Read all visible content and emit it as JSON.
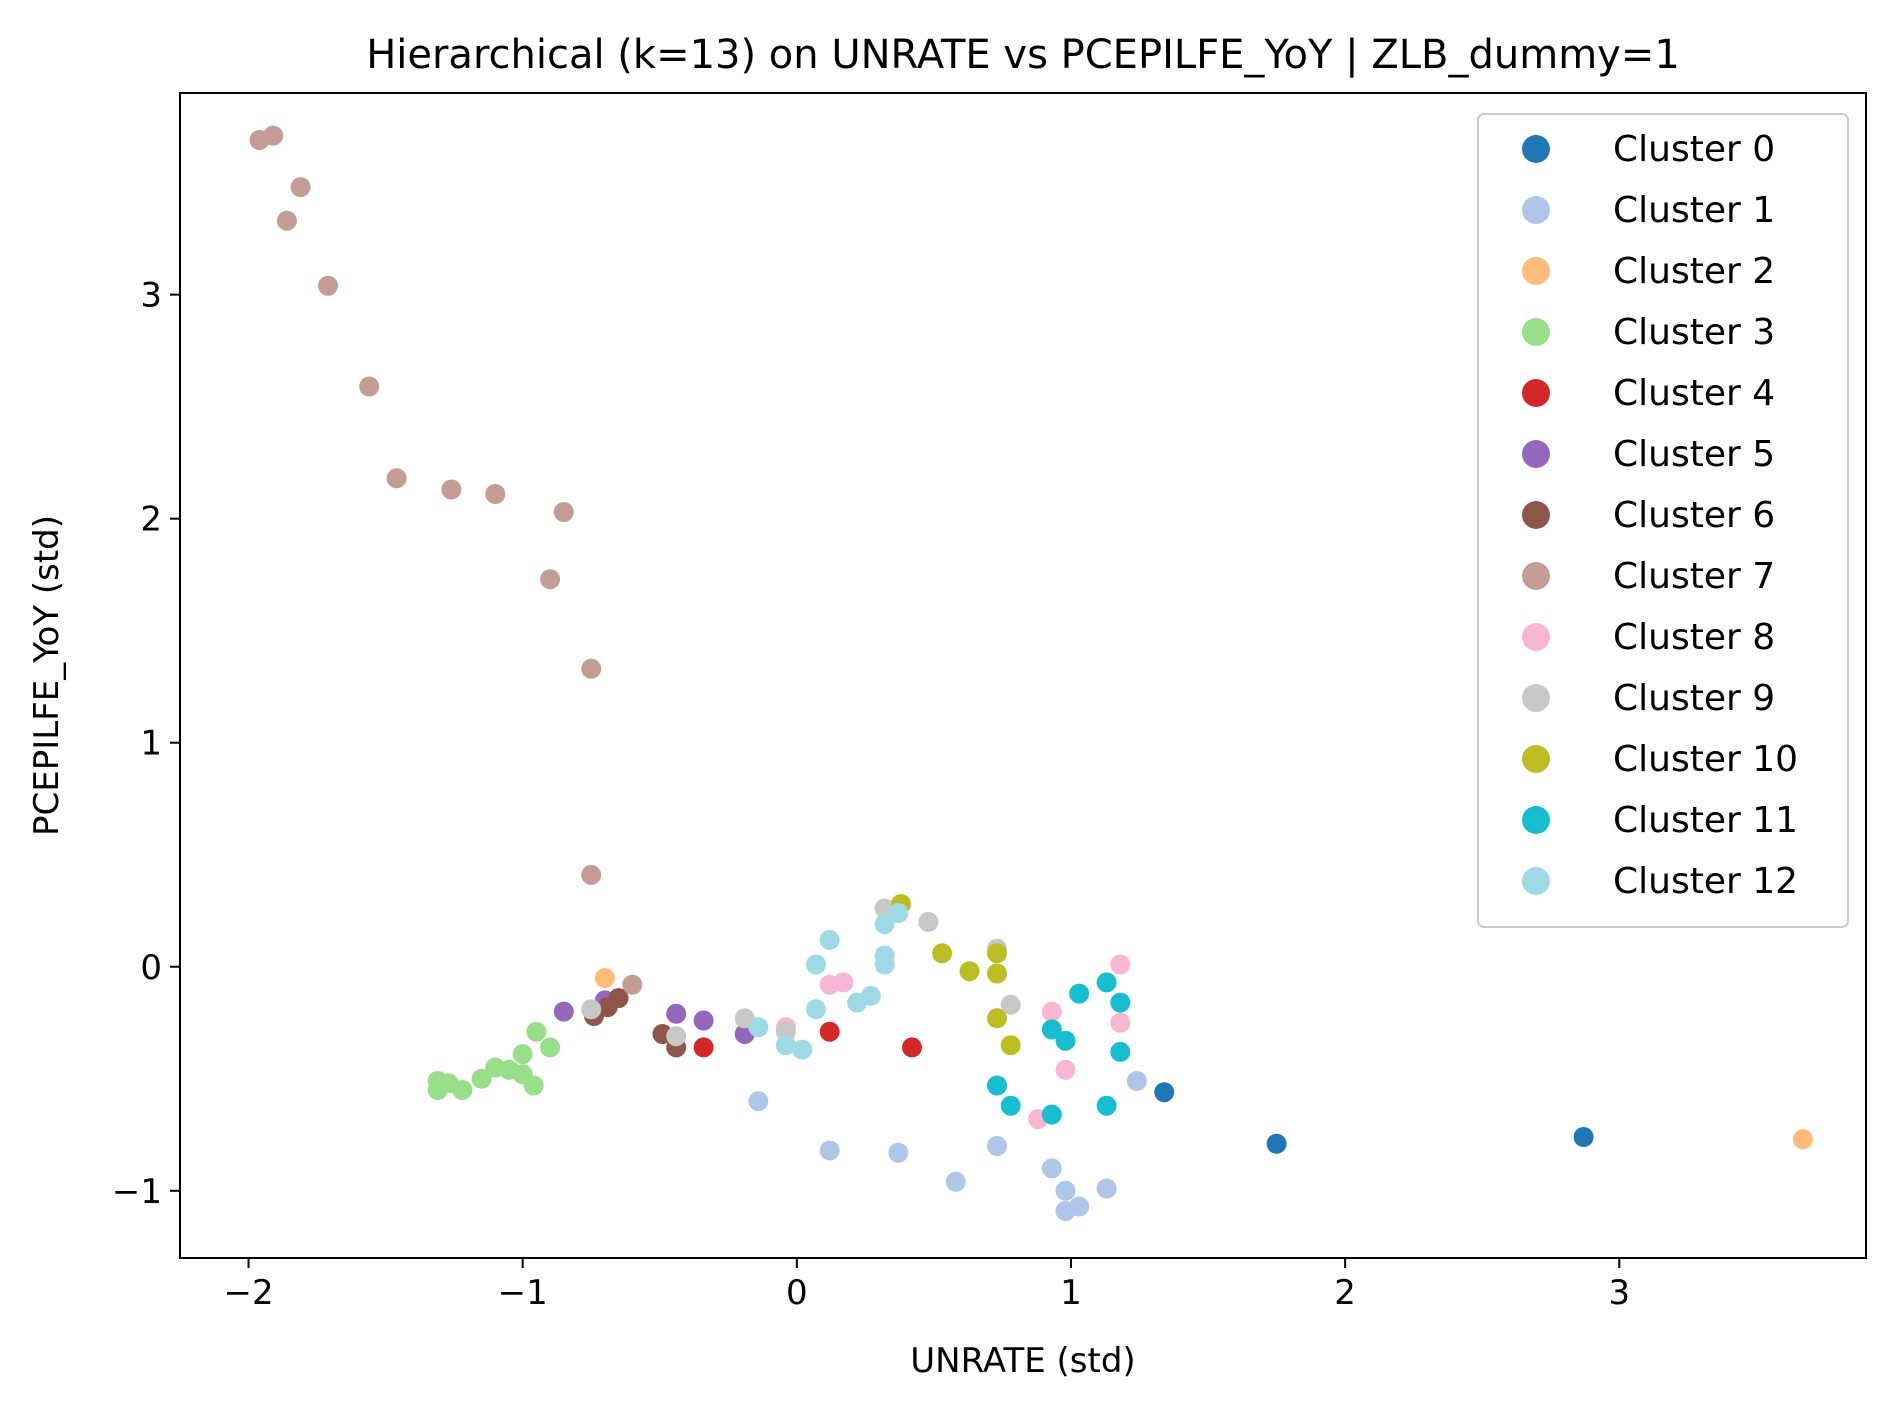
{
  "chart_data": {
    "type": "scatter",
    "title": "Hierarchical (k=13) on UNRATE vs PCEPILFE_YoY | ZLB_dummy=1",
    "xlabel": "UNRATE (std)",
    "ylabel": "PCEPILFE_YoY (std)",
    "xlim": [
      -2.25,
      3.9
    ],
    "ylim": [
      -1.3,
      3.9
    ],
    "xticks": [
      -2,
      -1,
      0,
      1,
      2,
      3
    ],
    "yticks": [
      -1,
      0,
      1,
      2,
      3
    ],
    "xtick_labels": [
      "−2",
      "−1",
      "0",
      "1",
      "2",
      "3"
    ],
    "ytick_labels": [
      "−1",
      "0",
      "1",
      "2",
      "3"
    ],
    "legend_position": "top-right",
    "series": [
      {
        "name": "Cluster 0",
        "color": "#1f77b4",
        "points": [
          [
            1.34,
            -0.56
          ],
          [
            1.75,
            -0.79
          ],
          [
            2.87,
            -0.76
          ]
        ]
      },
      {
        "name": "Cluster 1",
        "color": "#aec7e8",
        "points": [
          [
            -0.14,
            -0.6
          ],
          [
            0.12,
            -0.82
          ],
          [
            0.37,
            -0.83
          ],
          [
            0.58,
            -0.96
          ],
          [
            0.73,
            -0.8
          ],
          [
            0.93,
            -0.9
          ],
          [
            0.98,
            -1.0
          ],
          [
            0.98,
            -1.09
          ],
          [
            1.03,
            -1.07
          ],
          [
            1.13,
            -0.99
          ],
          [
            1.24,
            -0.51
          ]
        ]
      },
      {
        "name": "Cluster 2",
        "color": "#ffbb78",
        "points": [
          [
            -0.7,
            -0.05
          ],
          [
            3.67,
            -0.77
          ]
        ]
      },
      {
        "name": "Cluster 3",
        "color": "#98df8a",
        "points": [
          [
            -1.31,
            -0.51
          ],
          [
            -1.31,
            -0.55
          ],
          [
            -1.27,
            -0.52
          ],
          [
            -1.22,
            -0.55
          ],
          [
            -1.15,
            -0.5
          ],
          [
            -1.1,
            -0.45
          ],
          [
            -1.05,
            -0.46
          ],
          [
            -1.0,
            -0.48
          ],
          [
            -0.96,
            -0.53
          ],
          [
            -1.0,
            -0.39
          ],
          [
            -0.95,
            -0.29
          ],
          [
            -0.9,
            -0.36
          ]
        ]
      },
      {
        "name": "Cluster 4",
        "color": "#d62728",
        "points": [
          [
            -0.34,
            -0.36
          ],
          [
            0.12,
            -0.29
          ],
          [
            0.42,
            -0.36
          ]
        ]
      },
      {
        "name": "Cluster 5",
        "color": "#9467bd",
        "points": [
          [
            -0.85,
            -0.2
          ],
          [
            -0.7,
            -0.15
          ],
          [
            -0.44,
            -0.21
          ],
          [
            -0.34,
            -0.24
          ],
          [
            -0.19,
            -0.3
          ]
        ]
      },
      {
        "name": "Cluster 6",
        "color": "#8c564b",
        "points": [
          [
            -0.74,
            -0.22
          ],
          [
            -0.69,
            -0.18
          ],
          [
            -0.65,
            -0.14
          ],
          [
            -0.49,
            -0.3
          ],
          [
            -0.44,
            -0.36
          ]
        ]
      },
      {
        "name": "Cluster 7",
        "color": "#c49c94",
        "points": [
          [
            -1.96,
            3.69
          ],
          [
            -1.91,
            3.71
          ],
          [
            -1.81,
            3.48
          ],
          [
            -1.86,
            3.33
          ],
          [
            -1.71,
            3.04
          ],
          [
            -1.56,
            2.59
          ],
          [
            -1.46,
            2.18
          ],
          [
            -1.26,
            2.13
          ],
          [
            -1.1,
            2.11
          ],
          [
            -0.85,
            2.03
          ],
          [
            -0.9,
            1.73
          ],
          [
            -0.75,
            1.33
          ],
          [
            -0.75,
            0.41
          ],
          [
            -0.6,
            -0.08
          ]
        ]
      },
      {
        "name": "Cluster 8",
        "color": "#f7b6d2",
        "points": [
          [
            -0.04,
            -0.27
          ],
          [
            0.12,
            -0.08
          ],
          [
            0.17,
            -0.07
          ],
          [
            0.93,
            -0.2
          ],
          [
            0.98,
            -0.46
          ],
          [
            0.88,
            -0.68
          ],
          [
            1.18,
            0.01
          ],
          [
            1.18,
            -0.25
          ]
        ]
      },
      {
        "name": "Cluster 9",
        "color": "#c7c7c7",
        "points": [
          [
            -0.75,
            -0.19
          ],
          [
            -0.44,
            -0.31
          ],
          [
            -0.19,
            -0.23
          ],
          [
            -0.04,
            -0.29
          ],
          [
            0.32,
            0.26
          ],
          [
            0.48,
            0.2
          ],
          [
            0.73,
            0.08
          ],
          [
            0.78,
            -0.17
          ]
        ]
      },
      {
        "name": "Cluster 10",
        "color": "#bcbd22",
        "points": [
          [
            0.38,
            0.28
          ],
          [
            0.53,
            0.06
          ],
          [
            0.63,
            -0.02
          ],
          [
            0.73,
            0.06
          ],
          [
            0.73,
            -0.03
          ],
          [
            0.73,
            -0.23
          ],
          [
            0.78,
            -0.35
          ]
        ]
      },
      {
        "name": "Cluster 11",
        "color": "#17becf",
        "points": [
          [
            0.73,
            -0.53
          ],
          [
            0.78,
            -0.62
          ],
          [
            0.93,
            -0.28
          ],
          [
            0.98,
            -0.33
          ],
          [
            0.93,
            -0.66
          ],
          [
            1.03,
            -0.12
          ],
          [
            1.13,
            -0.07
          ],
          [
            1.13,
            -0.62
          ],
          [
            1.18,
            -0.16
          ],
          [
            1.18,
            -0.38
          ]
        ]
      },
      {
        "name": "Cluster 12",
        "color": "#9edae5",
        "points": [
          [
            -0.14,
            -0.27
          ],
          [
            -0.04,
            -0.35
          ],
          [
            0.02,
            -0.37
          ],
          [
            0.07,
            -0.19
          ],
          [
            0.07,
            0.01
          ],
          [
            0.12,
            0.12
          ],
          [
            0.22,
            -0.16
          ],
          [
            0.27,
            -0.13
          ],
          [
            0.32,
            0.01
          ],
          [
            0.32,
            0.05
          ],
          [
            0.32,
            0.19
          ],
          [
            0.37,
            0.24
          ]
        ]
      }
    ]
  }
}
